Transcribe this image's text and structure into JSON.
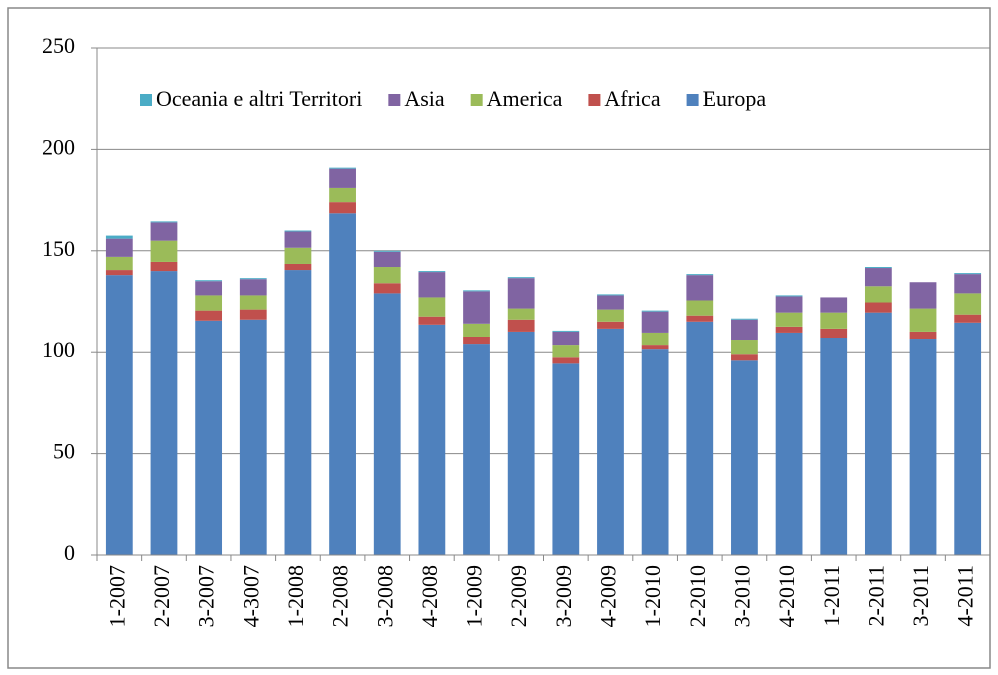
{
  "chart_data": {
    "type": "stacked_bar",
    "categories": [
      "1-2007",
      "2-2007",
      "3-2007",
      "4-3007",
      "1-2008",
      "2-2008",
      "3-2008",
      "4-2008",
      "1-2009",
      "2-2009",
      "3-2009",
      "4-2009",
      "1-2010",
      "2-2010",
      "3-2010",
      "4-2010",
      "1-2011",
      "2-2011",
      "3-2011",
      "4-2011"
    ],
    "series": [
      {
        "name": "Europa",
        "color": "#4f81bd",
        "values": [
          138,
          140,
          115.5,
          116,
          140.5,
          168.5,
          129,
          113.5,
          104,
          110,
          94.5,
          111.5,
          101.5,
          115,
          96,
          109.5,
          107,
          119.5,
          106.5,
          114.5
        ]
      },
      {
        "name": "Africa",
        "color": "#c0504d",
        "values": [
          2.5,
          4.5,
          5,
          5,
          3,
          5.5,
          5,
          4,
          3.5,
          6,
          3,
          3.5,
          2,
          3,
          3,
          3,
          4.5,
          5,
          3.5,
          4
        ]
      },
      {
        "name": "America",
        "color": "#9bbb59",
        "values": [
          6.5,
          10.5,
          7.5,
          7,
          8,
          7,
          8,
          9.5,
          6.5,
          5.5,
          6,
          6,
          6,
          7.5,
          7,
          7,
          8,
          8,
          11.5,
          10.5
        ]
      },
      {
        "name": "Asia",
        "color": "#8064a2",
        "values": [
          9,
          9,
          7,
          8,
          8,
          9.5,
          7.5,
          12.5,
          16,
          15,
          6.5,
          7,
          10.5,
          12.5,
          10,
          8,
          7.5,
          9,
          13,
          9.5
        ]
      },
      {
        "name": "Oceania e altri Territori",
        "color": "#4bacc6",
        "values": [
          1.5,
          0.5,
          0.5,
          0.5,
          0.5,
          0.5,
          0.5,
          0.5,
          0.5,
          0.5,
          0.5,
          0.5,
          0.5,
          0.5,
          0.5,
          0.5,
          0,
          0.5,
          0,
          0.5
        ]
      }
    ],
    "ylim": [
      0,
      250
    ],
    "yticks": [
      0,
      50,
      100,
      150,
      200,
      250
    ],
    "grid": true,
    "legend": "top"
  }
}
